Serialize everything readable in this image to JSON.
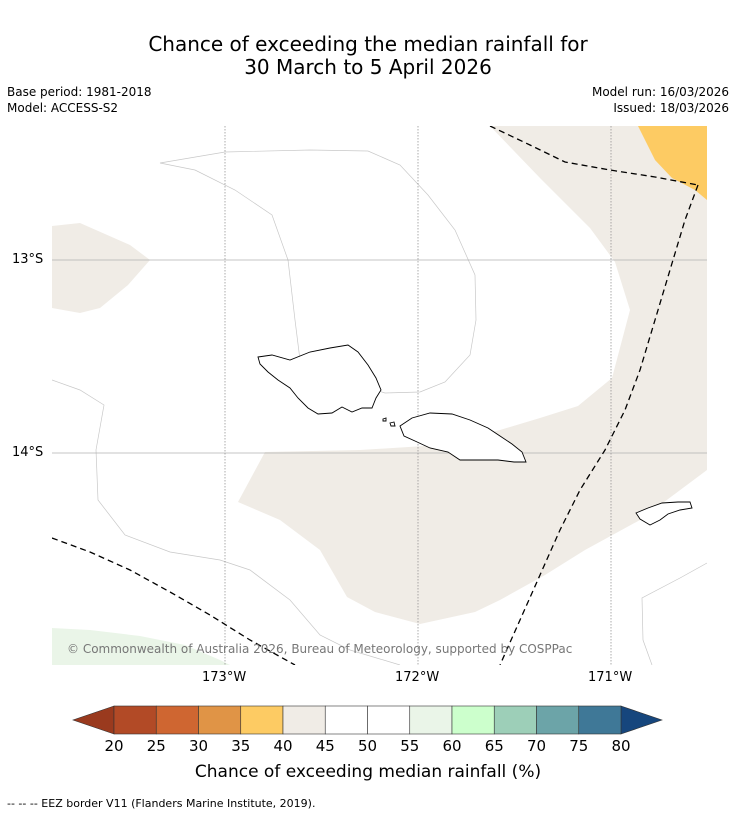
{
  "title": {
    "line1": "Chance of exceeding the median rainfall for",
    "line2": "30 March to 5 April 2026"
  },
  "meta": {
    "base_period": "Base period: 1981-2018",
    "model": "Model: ACCESS-S2",
    "model_run": "Model run: 16/03/2026",
    "issued": "Issued: 18/03/2026"
  },
  "map": {
    "lat_labels": [
      "13°S",
      "14°S"
    ],
    "lon_labels": [
      "173°W",
      "172°W",
      "171°W"
    ],
    "copyright": "© Commonwealth of Australia 2026, Bureau of Meteorology, supported by COSPPac",
    "colors": {
      "neutral_40_45": "#f0ece6",
      "band_35_40": "#fdcb63",
      "band_55_60": "#eaf5e8",
      "contour": "#bbbbbb",
      "grid": "#888888",
      "coast": "#000000"
    }
  },
  "colorbar": {
    "title": "Chance of exceeding median rainfall (%)",
    "labels": [
      "20",
      "25",
      "30",
      "35",
      "40",
      "45",
      "50",
      "55",
      "60",
      "65",
      "70",
      "75",
      "80"
    ],
    "under_color": "#9a3a1e",
    "over_color": "#16467d",
    "colors": [
      "#b24a26",
      "#cf6631",
      "#e09446",
      "#fdcb63",
      "#f0ece6",
      "#ffffff",
      "#ffffff",
      "#eaf5e8",
      "#ccffcc",
      "#9dcfb8",
      "#6ca4a8",
      "#3f7897"
    ]
  },
  "footnote": "--  --  -- EEZ border V11 (Flanders Marine Institute, 2019)."
}
